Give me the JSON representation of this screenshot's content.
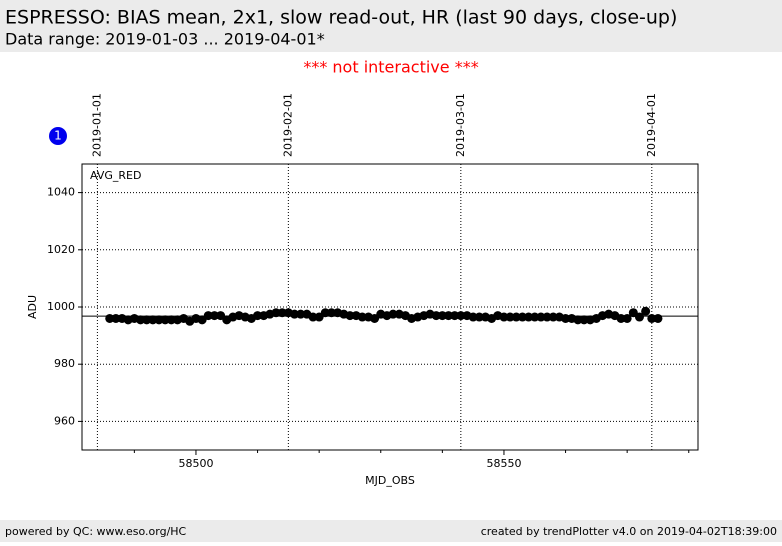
{
  "header": {
    "title": "ESPRESSO: BIAS mean, 2x1, slow read-out, HR (last 90 days, close-up)",
    "subtitle": "Data range: 2019-01-03 ... 2019-04-01*"
  },
  "notice": "*** not interactive ***",
  "badge": "1",
  "chart_data": {
    "type": "scatter",
    "series_label": "AVG_RED",
    "color": "#000000",
    "xlabel": "MJD_OBS",
    "ylabel": "ADU",
    "x": [
      58486,
      58487,
      58488,
      58489,
      58490,
      58491,
      58492,
      58493,
      58494,
      58495,
      58496,
      58497,
      58498,
      58499,
      58500,
      58501,
      58502,
      58503,
      58504,
      58505,
      58506,
      58507,
      58508,
      58509,
      58510,
      58511,
      58512,
      58513,
      58514,
      58515,
      58516,
      58517,
      58518,
      58519,
      58520,
      58521,
      58522,
      58523,
      58524,
      58525,
      58526,
      58527,
      58528,
      58529,
      58530,
      58531,
      58532,
      58533,
      58534,
      58535,
      58536,
      58537,
      58538,
      58539,
      58540,
      58541,
      58542,
      58543,
      58544,
      58545,
      58546,
      58547,
      58548,
      58549,
      58550,
      58551,
      58552,
      58553,
      58554,
      58555,
      58556,
      58557,
      58558,
      58559,
      58560,
      58561,
      58562,
      58563,
      58564,
      58565,
      58566,
      58567,
      58568,
      58569,
      58570,
      58571,
      58572,
      58573,
      58574,
      58575
    ],
    "values": [
      996,
      996,
      996,
      995.5,
      996,
      995.5,
      995.5,
      995.5,
      995.5,
      995.5,
      995.5,
      995.5,
      996,
      995,
      996,
      995.5,
      997,
      997,
      997,
      995.5,
      996.5,
      997,
      996.5,
      996,
      997,
      997,
      997.5,
      998,
      998,
      998,
      997.5,
      997.5,
      997.5,
      996.5,
      996.5,
      998,
      998,
      998,
      997.5,
      997,
      997,
      996.5,
      996.5,
      996,
      997.5,
      997,
      997.5,
      997.5,
      997,
      996,
      996.5,
      997,
      997.5,
      997,
      997,
      997,
      997,
      997,
      997,
      996.5,
      996.5,
      996.5,
      996,
      997,
      996.5,
      996.5,
      996.5,
      996.5,
      996.5,
      996.5,
      996.5,
      996.5,
      996.5,
      996.5,
      996,
      996,
      995.5,
      995.5,
      995.5,
      996,
      997,
      997.5,
      997,
      996,
      996,
      998,
      996.5,
      998.5,
      996,
      996
    ],
    "xlim": [
      58481.5,
      58581.5
    ],
    "xticks": [
      58500,
      58550
    ],
    "xminorticks": [
      58490,
      58510,
      58520,
      58530,
      58540,
      58560,
      58570,
      58580
    ],
    "ylim": [
      950,
      1050
    ],
    "yticks": [
      960,
      980,
      1000,
      1020,
      1040
    ],
    "grid": true,
    "reference_line": 996.8,
    "date_lines": [
      {
        "value": 58484,
        "label": "2019-01-01"
      },
      {
        "value": 58515,
        "label": "2019-02-01"
      },
      {
        "value": 58543,
        "label": "2019-03-01"
      },
      {
        "value": 58574,
        "label": "2019-04-01"
      }
    ]
  },
  "footer": {
    "left": "powered by QC: www.eso.org/HC",
    "right": "created by trendPlotter v4.0 on 2019-04-02T18:39:00"
  }
}
